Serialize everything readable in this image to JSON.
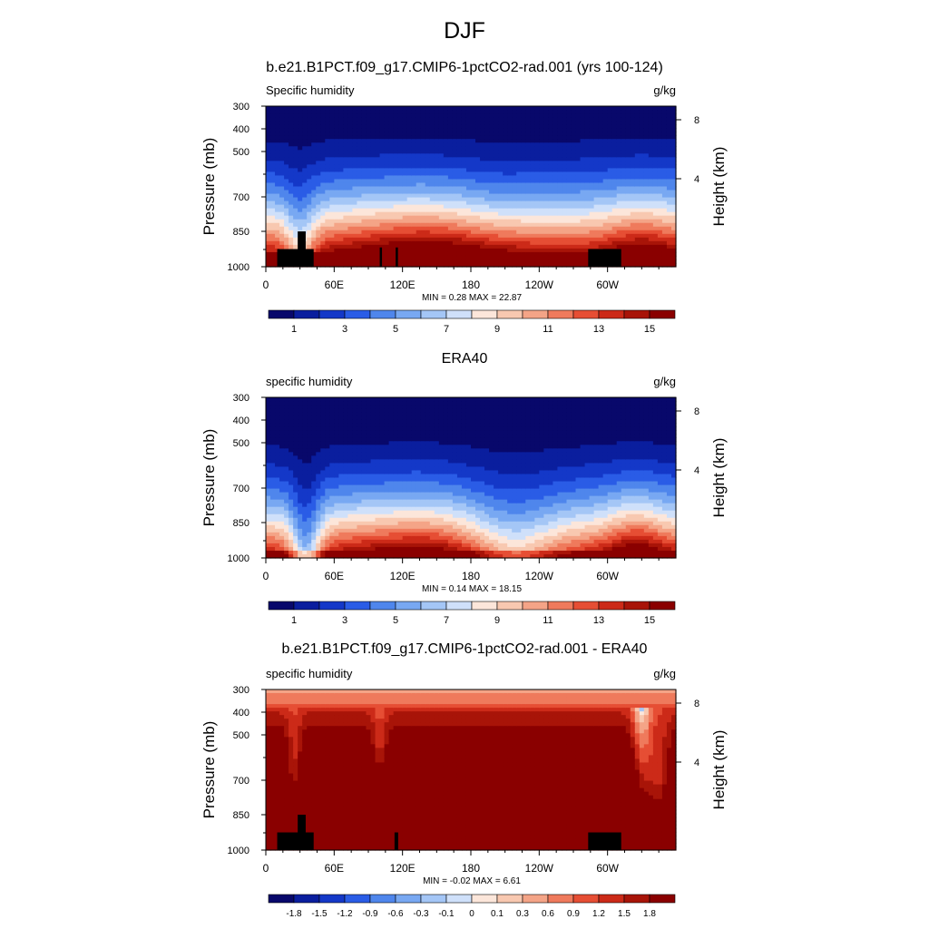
{
  "main_title": "DJF",
  "chart_data": [
    {
      "type": "heatmap",
      "title": "b.e21.B1PCT.f09_g17.CMIP6-1pctCO2-rad.001 (yrs 100-124)",
      "left_string": "Specific humidity",
      "right_string": "g/kg",
      "ylabel": "Pressure (mb)",
      "ylabel_right": "Height (km)",
      "x_ticks": [
        "0",
        "60E",
        "120E",
        "180",
        "120W",
        "60W"
      ],
      "y_ticks": [
        "300",
        "400",
        "500",
        "700",
        "850",
        "1000"
      ],
      "y_right_ticks": [
        "8",
        "4"
      ],
      "stats": "MIN =   0.28  MAX =  22.87",
      "min": 0.28,
      "max": 22.87,
      "colorbar_labels": [
        "1",
        "3",
        "5",
        "7",
        "9",
        "11",
        "13",
        "15"
      ],
      "colorbar_levels": [
        0,
        1,
        2,
        3,
        4,
        5,
        6,
        7,
        8,
        9,
        10,
        11,
        12,
        13,
        14,
        15,
        16
      ]
    },
    {
      "type": "heatmap",
      "title": "ERA40",
      "left_string": "specific humidity",
      "right_string": "g/kg",
      "ylabel": "Pressure (mb)",
      "ylabel_right": "Height (km)",
      "x_ticks": [
        "0",
        "60E",
        "120E",
        "180",
        "120W",
        "60W"
      ],
      "y_ticks": [
        "300",
        "400",
        "500",
        "700",
        "850",
        "1000"
      ],
      "y_right_ticks": [
        "8",
        "4"
      ],
      "stats": "MIN =   0.14  MAX =  18.15",
      "min": 0.14,
      "max": 18.15,
      "colorbar_labels": [
        "1",
        "3",
        "5",
        "7",
        "9",
        "11",
        "13",
        "15"
      ],
      "colorbar_levels": [
        0,
        1,
        2,
        3,
        4,
        5,
        6,
        7,
        8,
        9,
        10,
        11,
        12,
        13,
        14,
        15,
        16
      ]
    },
    {
      "type": "heatmap",
      "title": "b.e21.B1PCT.f09_g17.CMIP6-1pctCO2-rad.001 - ERA40",
      "left_string": "specific humidity",
      "right_string": "g/kg",
      "ylabel": "Pressure (mb)",
      "ylabel_right": "Height (km)",
      "x_ticks": [
        "0",
        "60E",
        "120E",
        "180",
        "120W",
        "60W"
      ],
      "y_ticks": [
        "300",
        "400",
        "500",
        "700",
        "850",
        "1000"
      ],
      "y_right_ticks": [
        "8",
        "4"
      ],
      "stats": "MIN =  -0.02  MAX =   6.61",
      "min": -0.02,
      "max": 6.61,
      "colorbar_labels": [
        "-1.8",
        "-1.5",
        "-1.2",
        "-0.9",
        "-0.6",
        "-0.3",
        "-0.1",
        "0",
        "0.1",
        "0.3",
        "0.6",
        "0.9",
        "1.2",
        "1.5",
        "1.8"
      ],
      "colorbar_levels": [
        -2.1,
        -1.8,
        -1.5,
        -1.2,
        -0.9,
        -0.6,
        -0.3,
        -0.1,
        0,
        0.1,
        0.3,
        0.6,
        0.9,
        1.2,
        1.5,
        1.8,
        2.1
      ]
    }
  ],
  "colormap": [
    "#08086b",
    "#0a1e9e",
    "#1438c8",
    "#2a5ce6",
    "#4f86ec",
    "#78a8f2",
    "#a4c6f6",
    "#cfe0fa",
    "#fce6da",
    "#f8c8b0",
    "#f4a487",
    "#ef7a5c",
    "#e64e34",
    "#cc2a18",
    "#a81408",
    "#8a0000"
  ]
}
